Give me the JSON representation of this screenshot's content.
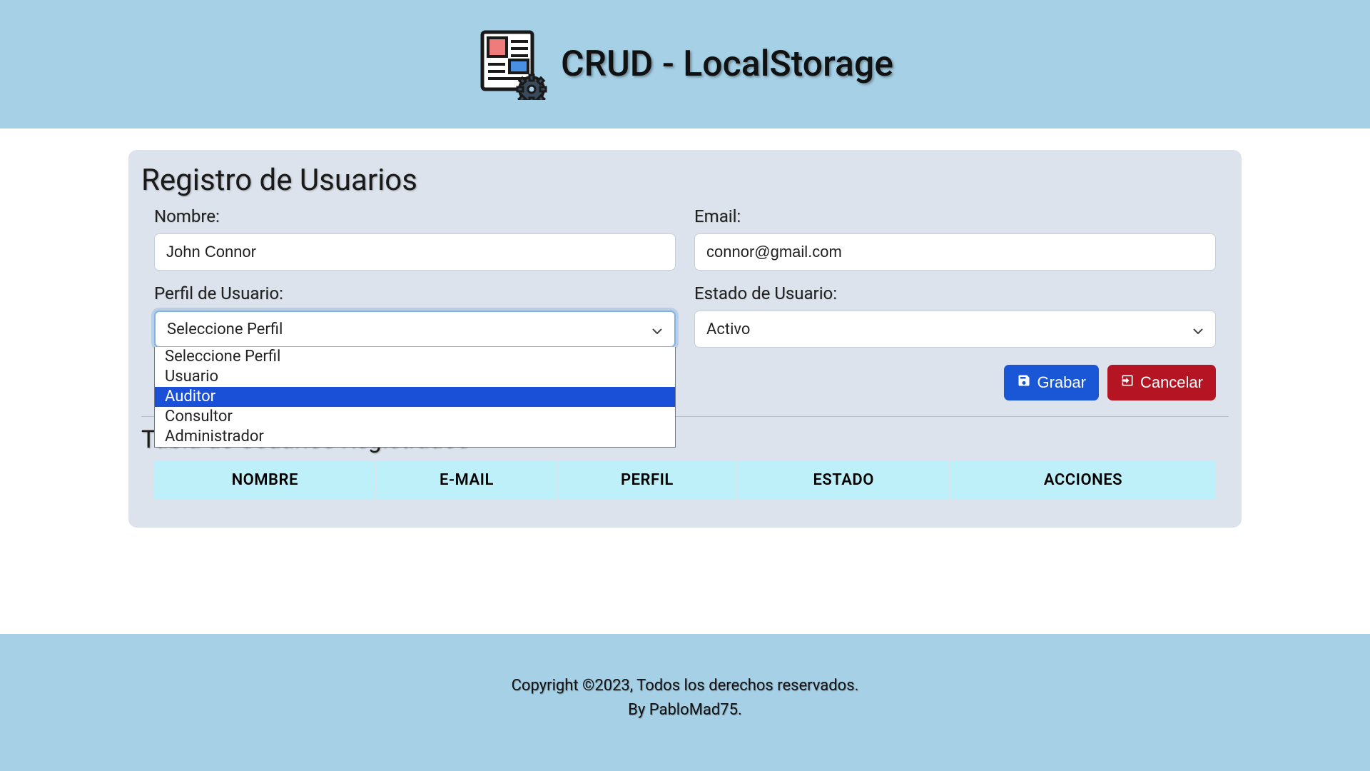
{
  "header": {
    "title": "CRUD - LocalStorage",
    "icon_colors": {
      "outline": "#1a1a1a",
      "fill": "#ffffff",
      "square1": "#f07b7b",
      "square2": "#4a90e2",
      "gear": "#3a4a5a"
    }
  },
  "form": {
    "section_title": "Registro de Usuarios",
    "name_label": "Nombre:",
    "name_value": "John Connor",
    "email_label": "Email:",
    "email_value": "connor@gmail.com",
    "profile_label": "Perfil de Usuario:",
    "profile_selected": "Seleccione Perfil",
    "profile_options": [
      "Seleccione Perfil",
      "Usuario",
      "Auditor",
      "Consultor",
      "Administrador"
    ],
    "profile_highlight_index": 2,
    "state_label": "Estado de Usuario:",
    "state_selected": "Activo",
    "save_label": "Grabar",
    "cancel_label": "Cancelar"
  },
  "table": {
    "section_title": "Tabla de Usuarios Registrados",
    "columns": [
      "NOMBRE",
      "E-MAIL",
      "PERFIL",
      "ESTADO",
      "ACCIONES"
    ],
    "column_widths_pct": [
      21,
      17,
      17,
      20,
      25
    ],
    "header_bg": "#bdf0f9"
  },
  "footer": {
    "line1": "Copyright ©2023, Todos los derechos reservados.",
    "line2": "By PabloMad75."
  },
  "colors": {
    "page_bg": "#ffffff",
    "banner_bg": "#a5d0e6",
    "card_bg": "#dde3ec",
    "btn_primary": "#1957d6",
    "btn_danger": "#b51523",
    "dropdown_highlight": "#1a4fd8"
  }
}
